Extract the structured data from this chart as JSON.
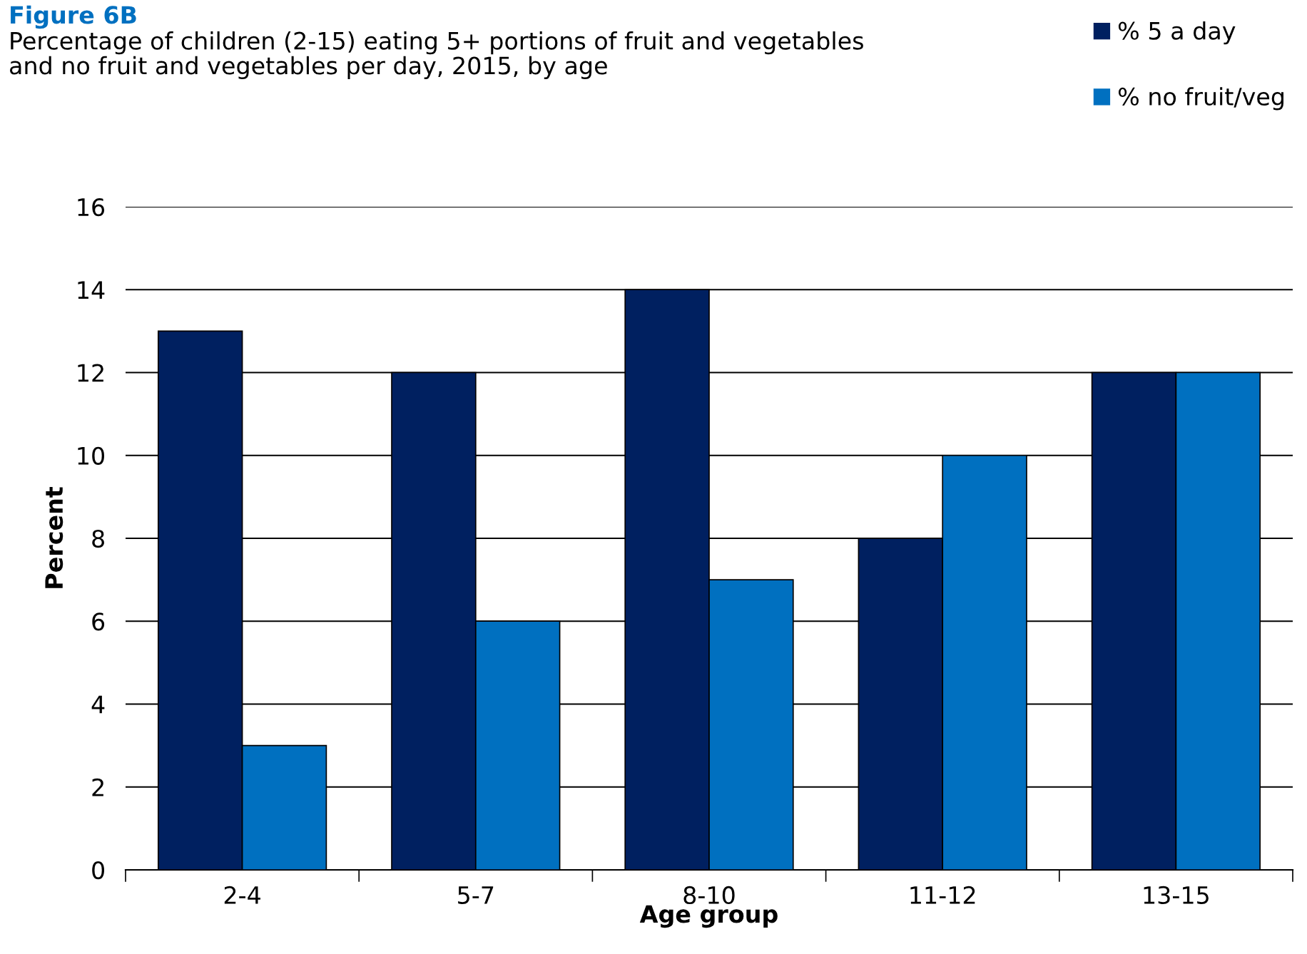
{
  "chart_data": {
    "type": "bar",
    "title": "Figure 6B",
    "subtitle": "Percentage of children (2-15) eating 5+ portions of fruit and vegetables\nand no fruit and vegetables per day, 2015, by age",
    "xlabel": "Age group",
    "ylabel": "Percent",
    "categories": [
      "2-4",
      "5-7",
      "8-10",
      "11-12",
      "13-15"
    ],
    "series": [
      {
        "name": "% 5 a day",
        "color": "#002060",
        "values": [
          13,
          12,
          14,
          8,
          12
        ]
      },
      {
        "name": "% no fruit/veg",
        "color": "#0070c0",
        "values": [
          3,
          6,
          7,
          10,
          12
        ]
      }
    ],
    "ylim": [
      0,
      16
    ],
    "yticks": [
      0,
      2,
      4,
      6,
      8,
      10,
      12,
      14,
      16
    ],
    "grid": "y",
    "legend": "top right"
  }
}
